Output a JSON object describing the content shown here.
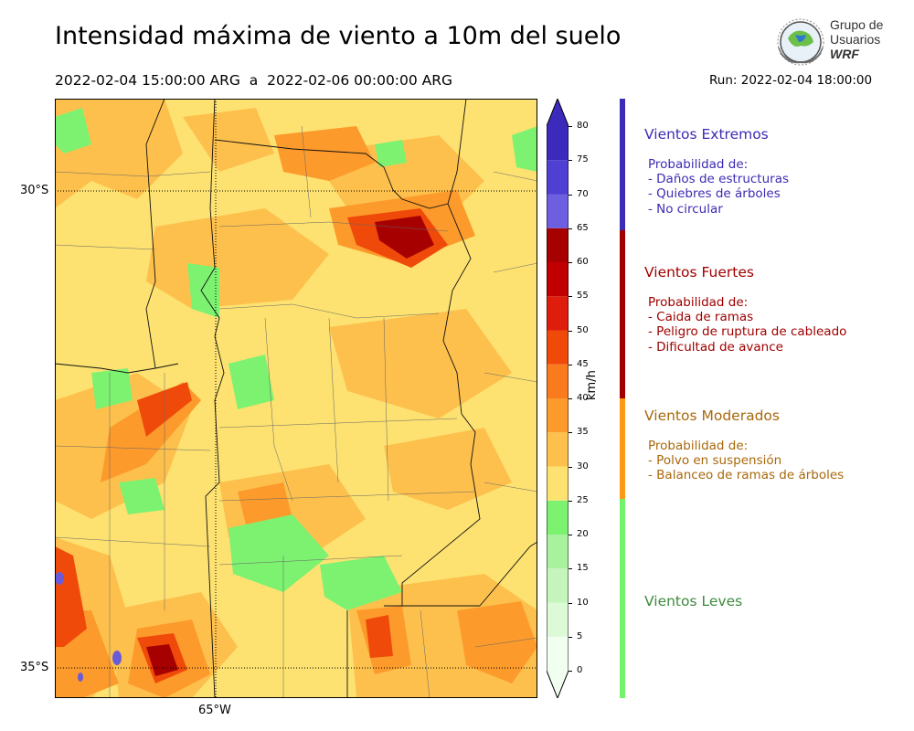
{
  "header": {
    "title": "Intensidad máxima de viento a 10m del suelo",
    "period": "2022-02-04 15:00:00 ARG  a  2022-02-06 00:00:00 ARG",
    "run": "Run: 2022-02-04 18:00:00"
  },
  "logo": {
    "line1": "Grupo de",
    "line2": "Usuarios",
    "line3": "WRF",
    "icon": "globe-wrf-icon"
  },
  "map": {
    "lat_labels": [
      "30°S",
      "35°S"
    ],
    "lon_labels": [
      "65°W"
    ],
    "gridlines": "dotted",
    "colors": {
      "light_yellow": "#fde271",
      "yellow_orange": "#fdc04c",
      "orange": "#fd9a2c",
      "dark_orange": "#f26614",
      "red": "#dc1b0b",
      "dark_red": "#a70000",
      "green": "#7cf270",
      "purple": "#6a5bd8"
    }
  },
  "colorbar": {
    "unit_label": "km/h",
    "ticks": [
      "0",
      "5",
      "10",
      "15",
      "20",
      "25",
      "30",
      "35",
      "40",
      "45",
      "50",
      "55",
      "60",
      "65",
      "70",
      "75",
      "80"
    ],
    "levels": [
      {
        "from": 0,
        "to": 5,
        "color": "#f0fff0"
      },
      {
        "from": 5,
        "to": 10,
        "color": "#dcfad6"
      },
      {
        "from": 10,
        "to": 15,
        "color": "#c5f5bd"
      },
      {
        "from": 15,
        "to": 20,
        "color": "#a9f29d"
      },
      {
        "from": 20,
        "to": 25,
        "color": "#7cf270"
      },
      {
        "from": 25,
        "to": 30,
        "color": "#fde271"
      },
      {
        "from": 30,
        "to": 35,
        "color": "#fdc04c"
      },
      {
        "from": 35,
        "to": 40,
        "color": "#fd9a2c"
      },
      {
        "from": 40,
        "to": 45,
        "color": "#fa7b1e"
      },
      {
        "from": 45,
        "to": 50,
        "color": "#f04a0a"
      },
      {
        "from": 50,
        "to": 55,
        "color": "#de1d0c"
      },
      {
        "from": 55,
        "to": 60,
        "color": "#c00000"
      },
      {
        "from": 60,
        "to": 65,
        "color": "#a70000"
      },
      {
        "from": 65,
        "to": 70,
        "color": "#6d5fe0"
      },
      {
        "from": 70,
        "to": 75,
        "color": "#4f3fd2"
      },
      {
        "from": 75,
        "to": 80,
        "color": "#3c2abc"
      }
    ]
  },
  "legend": [
    {
      "title": "Vientos Extremos",
      "color": "#3c2bb4",
      "bar_color": "#3c2bb4",
      "heading": "Probabilidad de:",
      "items": [
        "- Daños de estructuras",
        "- Quiebres de árboles",
        "- No circular"
      ]
    },
    {
      "title": "Vientos Fuertes",
      "color": "#a00000",
      "bar_color": "#a00000",
      "heading": "Probabilidad de:",
      "items": [
        "- Caida de ramas",
        "- Peligro de ruptura de cableado",
        "- Dificultad de avance"
      ]
    },
    {
      "title": "Vientos Moderados",
      "color": "#a8680a",
      "bar_color": "#fd9a12",
      "heading": "Probabilidad de:",
      "items": [
        "- Polvo en suspensión",
        "- Balanceo de ramas de árboles"
      ]
    },
    {
      "title": "Vientos Leves",
      "color": "#3d8a3d",
      "bar_color": "#72f36a"
    }
  ]
}
